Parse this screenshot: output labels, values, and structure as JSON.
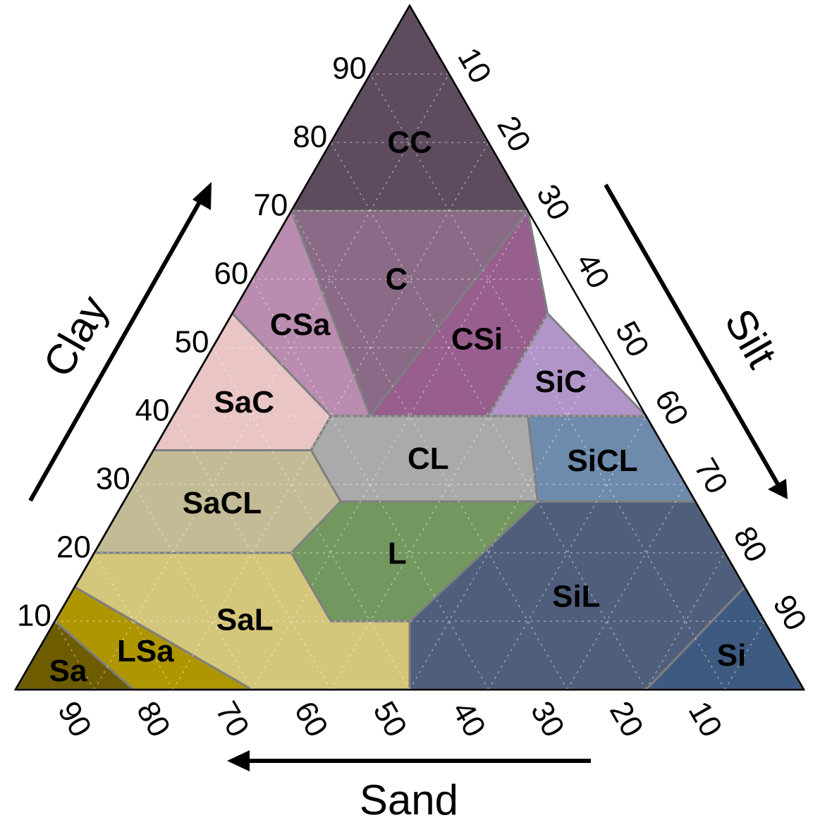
{
  "chart_data": {
    "type": "ternary",
    "axes": {
      "clay": {
        "label": "Clay",
        "ticks": [
          "10",
          "20",
          "30",
          "40",
          "50",
          "60",
          "70",
          "80",
          "90"
        ]
      },
      "silt": {
        "label": "Silt",
        "ticks": [
          "10",
          "20",
          "30",
          "40",
          "50",
          "60",
          "70",
          "80",
          "90"
        ]
      },
      "sand": {
        "label": "Sand",
        "ticks": [
          "90",
          "80",
          "70",
          "60",
          "50",
          "40",
          "30",
          "20",
          "10"
        ]
      }
    },
    "grid": true,
    "regions": [
      {
        "label": "CC",
        "color": "#5e4b5e",
        "vertices": [
          [
            0,
            100
          ],
          [
            0,
            70
          ],
          [
            30,
            70
          ]
        ]
      },
      {
        "label": "C",
        "color": "#8a6a86",
        "vertices": [
          [
            0,
            70
          ],
          [
            25,
            40
          ],
          [
            30,
            70
          ]
        ]
      },
      {
        "label": "CSa",
        "color": "#b98cb0",
        "vertices": [
          [
            0,
            70
          ],
          [
            0,
            55
          ],
          [
            20,
            40
          ],
          [
            25,
            40
          ]
        ]
      },
      {
        "label": "CSi",
        "color": "#975e8e",
        "vertices": [
          [
            25,
            40
          ],
          [
            40,
            40
          ],
          [
            40,
            55
          ],
          [
            30,
            70
          ]
        ]
      },
      {
        "label": "SiC",
        "color": "#b195c9",
        "vertices": [
          [
            40,
            55
          ],
          [
            40,
            40
          ],
          [
            60,
            40
          ]
        ]
      },
      {
        "label": "SaC",
        "color": "#eac5c5",
        "vertices": [
          [
            0,
            55
          ],
          [
            0,
            35
          ],
          [
            20,
            35
          ],
          [
            20,
            40
          ]
        ]
      },
      {
        "label": "CL",
        "color": "#aaaaaa",
        "vertices": [
          [
            20,
            40
          ],
          [
            20,
            35
          ],
          [
            27.5,
            27.5
          ],
          [
            52.5,
            27.5
          ],
          [
            45,
            40
          ]
        ]
      },
      {
        "label": "SiCL",
        "color": "#6e8bac",
        "vertices": [
          [
            45,
            40
          ],
          [
            52.5,
            27.5
          ],
          [
            72.5,
            27.5
          ],
          [
            60,
            40
          ]
        ]
      },
      {
        "label": "SaCL",
        "color": "#c2bb95",
        "vertices": [
          [
            0,
            35
          ],
          [
            0,
            20
          ],
          [
            25,
            20
          ],
          [
            27.5,
            27.5
          ],
          [
            20,
            35
          ]
        ]
      },
      {
        "label": "L",
        "color": "#73985f",
        "vertices": [
          [
            27.5,
            27.5
          ],
          [
            25,
            20
          ],
          [
            35,
            10
          ],
          [
            45,
            10
          ],
          [
            52.5,
            27.5
          ]
        ]
      },
      {
        "label": "SiL",
        "color": "#4f5f7b",
        "vertices": [
          [
            52.5,
            27.5
          ],
          [
            45,
            10
          ],
          [
            50,
            0
          ],
          [
            80,
            0
          ],
          [
            85,
            15
          ],
          [
            87.5,
            12.5
          ],
          [
            72.5,
            27.5
          ]
        ]
      },
      {
        "label": "Si",
        "color": "#3f5a80",
        "vertices": [
          [
            80,
            0
          ],
          [
            100,
            0
          ],
          [
            87.5,
            12.5
          ],
          [
            85,
            15
          ]
        ]
      },
      {
        "label": "SaL",
        "color": "#d4c67a",
        "vertices": [
          [
            0,
            20
          ],
          [
            0,
            15
          ],
          [
            30,
            0
          ],
          [
            50,
            0
          ],
          [
            45,
            10
          ],
          [
            35,
            10
          ],
          [
            25,
            20
          ]
        ]
      },
      {
        "label": "LSa",
        "color": "#ad9600",
        "vertices": [
          [
            0,
            15
          ],
          [
            0,
            10
          ],
          [
            15,
            0
          ],
          [
            30,
            0
          ]
        ]
      },
      {
        "label": "Sa",
        "color": "#6d5c00",
        "vertices": [
          [
            0,
            10
          ],
          [
            0,
            0
          ],
          [
            15,
            0
          ]
        ]
      }
    ]
  }
}
